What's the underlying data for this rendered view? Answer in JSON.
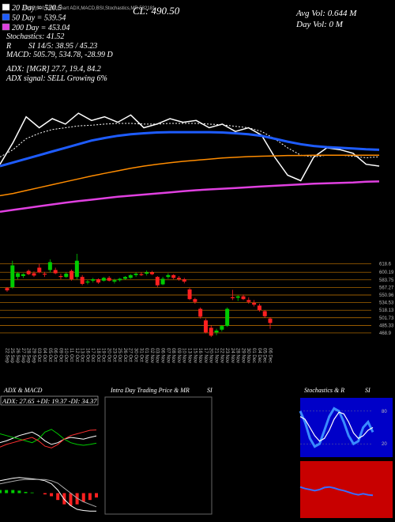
{
  "header": {
    "title": "(NSE)500 EMA Chart ADX,MACD,BSI,Stochastics,MR 532181",
    "close": "CL: 490.50",
    "avg_vol": "Avg Vol: 0.644 M",
    "day_vol": "Day Vol: 0 M",
    "indicators": [
      "Stochastics: 41.52",
      "R",
      "SI 14/5: 38.95 / 45.23",
      "MACD: 505.79, 534.78, -28.99 D",
      "ADX: [MGR] 27.7, 19.4, 84.2",
      "ADX signal: SELL Growing 6%"
    ]
  },
  "chart_data": [
    {
      "type": "line",
      "ylim": [
        300,
        950
      ],
      "series": [
        {
          "color": "#ffffff",
          "width": 1.5,
          "values": [
            500,
            560,
            630,
            600,
            625,
            610,
            640,
            620,
            630,
            615,
            635,
            600,
            610,
            625,
            615,
            620,
            600,
            610,
            590,
            600,
            580,
            520,
            470,
            455,
            520,
            545,
            540,
            530,
            500,
            495
          ]
        },
        {
          "name": "20 Day = 520.5",
          "color": "#ffffff",
          "width": 1,
          "dash": true,
          "values": [
            520,
            540,
            570,
            585,
            595,
            600,
            605,
            607,
            610,
            612,
            612,
            610,
            610,
            612,
            612,
            612,
            610,
            608,
            604,
            600,
            590,
            570,
            545,
            525,
            520,
            525,
            525,
            522,
            518,
            520.5
          ]
        },
        {
          "name": "50 Day = 539.54",
          "color": "#1e5cff",
          "width": 3,
          "values": [
            495,
            505,
            515,
            525,
            535,
            545,
            555,
            565,
            572,
            578,
            582,
            585,
            587,
            588,
            588,
            588,
            588,
            587,
            585,
            582,
            578,
            570,
            562,
            555,
            550,
            547,
            545,
            543,
            541,
            539.54
          ]
        },
        {
          "color": "#ff8c00",
          "width": 1.5,
          "values": [
            414,
            420,
            428,
            436,
            444,
            452,
            460,
            468,
            475,
            482,
            489,
            495,
            500,
            504,
            508,
            511,
            514,
            517,
            519,
            521,
            522,
            523,
            524,
            524,
            525,
            525,
            525,
            525,
            525,
            525
          ]
        },
        {
          "name": "200 Day = 453.04",
          "color": "#e040e0",
          "width": 2.5,
          "values": [
            370,
            375,
            380,
            385,
            390,
            395,
            399,
            403,
            407,
            411,
            414,
            417,
            420,
            423,
            426,
            429,
            431,
            433,
            435,
            437,
            439,
            441,
            443,
            445,
            447,
            448,
            449,
            450,
            452,
            453.04
          ]
        }
      ]
    },
    {
      "type": "candlestick",
      "ylim": [
        450,
        645
      ],
      "level_color": "#c87800",
      "up_color": "#00cc00",
      "down_color": "#ff2020",
      "yticks": [
        618.6,
        600.19,
        583.75,
        567.27,
        550.96,
        534.53,
        518.13,
        501.73,
        485.33,
        468.9
      ],
      "categories": [
        "22 Sep",
        "25 Sep",
        "26 Sep",
        "27 Sep",
        "28 Sep",
        "29 Sep",
        "03 Oct",
        "04 Oct",
        "05 Oct",
        "06 Oct",
        "09 Oct",
        "10 Oct",
        "11 Oct",
        "12 Oct",
        "13 Oct",
        "16 Oct",
        "17 Oct",
        "18 Oct",
        "19 Oct",
        "20 Oct",
        "23 Oct",
        "25 Oct",
        "26 Oct",
        "27 Oct",
        "30 Oct",
        "31 Oct",
        "01 Nov",
        "02 Nov",
        "03 Nov",
        "06 Nov",
        "07 Nov",
        "08 Nov",
        "09 Nov",
        "10 Nov",
        "13 Nov",
        "15 Nov",
        "16 Nov",
        "17 Nov",
        "20 Nov",
        "21 Nov",
        "22 Nov",
        "23 Nov",
        "24 Nov",
        "28 Nov",
        "29 Nov",
        "30 Nov",
        "01 Dec",
        "04 Dec",
        "05 Dec",
        "06 Dec"
      ],
      "open": [
        566,
        568,
        590,
        592,
        603,
        598,
        610,
        597,
        605,
        605,
        592,
        590,
        603,
        590,
        590,
        578,
        582,
        585,
        582,
        588,
        580,
        583,
        586,
        588,
        594,
        596,
        597,
        600,
        590,
        574,
        590,
        594,
        588,
        585,
        563,
        542,
        521,
        496,
        480,
        470,
        476,
        484,
        546,
        545,
        548,
        540,
        534,
        528,
        516,
        500
      ],
      "high": [
        568,
        625,
        600,
        598,
        606,
        602,
        618,
        601,
        628,
        610,
        597,
        600,
        606,
        640,
        594,
        584,
        588,
        587,
        590,
        592,
        586,
        588,
        592,
        596,
        600,
        600,
        604,
        603,
        592,
        590,
        598,
        596,
        592,
        588,
        566,
        545,
        524,
        500,
        485,
        478,
        486,
        524,
        562,
        550,
        552,
        546,
        540,
        532,
        518,
        503
      ],
      "low": [
        558,
        565,
        585,
        588,
        594,
        590,
        598,
        590,
        600,
        596,
        585,
        588,
        582,
        585,
        572,
        574,
        578,
        575,
        580,
        580,
        576,
        580,
        584,
        586,
        590,
        592,
        593,
        594,
        568,
        572,
        586,
        585,
        582,
        576,
        540,
        532,
        500,
        468,
        460,
        464,
        472,
        482,
        540,
        538,
        540,
        532,
        526,
        515,
        502,
        478
      ],
      "close": [
        561,
        615,
        598,
        596,
        596,
        593,
        600,
        595,
        622,
        598,
        590,
        597,
        585,
        625,
        575,
        580,
        585,
        578,
        588,
        582,
        583,
        586,
        590,
        594,
        597,
        594,
        600,
        596,
        572,
        586,
        594,
        588,
        585,
        580,
        542,
        536,
        504,
        470,
        463,
        474,
        484,
        521,
        544,
        548,
        542,
        536,
        530,
        518,
        505,
        490.5
      ]
    },
    {
      "type": "adx",
      "title": "ADX & MACD",
      "annotation": "ADX: 27.65 +DI: 19.37 -DI: 34.37",
      "ylim": [
        0,
        60
      ],
      "series": [
        {
          "color": "#ffffff",
          "values": [
            20,
            22,
            25,
            28,
            30,
            32,
            28,
            22,
            18,
            20,
            24,
            26,
            25,
            24,
            26,
            27.65
          ]
        },
        {
          "color": "#00cc00",
          "values": [
            30,
            28,
            26,
            24,
            22,
            20,
            24,
            32,
            35,
            30,
            24,
            20,
            18,
            17,
            18,
            19.37
          ]
        },
        {
          "color": "#ff3030",
          "values": [
            15,
            18,
            20,
            22,
            24,
            26,
            22,
            16,
            14,
            18,
            24,
            28,
            30,
            32,
            34,
            34.37
          ]
        }
      ]
    },
    {
      "type": "macd",
      "ylim": [
        -40,
        40
      ],
      "up_color": "#00cc00",
      "down_color": "#ff2020",
      "series": [
        {
          "color": "#ffffff",
          "values": [
            20,
            22,
            24,
            25,
            24,
            23,
            22,
            20,
            15,
            5,
            -10,
            -20,
            -26,
            -28,
            -29,
            -28.99
          ]
        },
        {
          "color": "#aaaaaa",
          "values": [
            15,
            17,
            19,
            21,
            22,
            22,
            22,
            22,
            20,
            16,
            8,
            0,
            -8,
            -14,
            -18,
            -22
          ]
        }
      ],
      "values": [
        5,
        5,
        5,
        4,
        2,
        1,
        0,
        -2,
        -5,
        -11,
        -18,
        -20,
        -18,
        -14,
        -11,
        -7
      ]
    },
    {
      "type": "empty",
      "title": "Intra Day Trading Price & MR",
      "title_suffix": "SI"
    },
    {
      "type": "stochastic",
      "title": "Stochastics & R",
      "title_suffix": "SI",
      "background": "#0000c8",
      "ylim": [
        0,
        100
      ],
      "yticks": [
        80,
        20
      ],
      "series": [
        {
          "color": "#3a8cff",
          "width": 3,
          "values": [
            80,
            60,
            30,
            15,
            20,
            45,
            70,
            85,
            80,
            60,
            35,
            20,
            25,
            50,
            60,
            41.52
          ]
        },
        {
          "color": "#ffffff",
          "width": 1.2,
          "values": [
            70,
            65,
            50,
            35,
            25,
            30,
            45,
            65,
            78,
            75,
            60,
            40,
            30,
            35,
            45,
            50
          ]
        }
      ]
    },
    {
      "type": "rsi",
      "background": "#c80000",
      "ylim": [
        0,
        100
      ],
      "series": [
        {
          "color": "#3a6cff",
          "width": 2,
          "values": [
            55,
            52,
            50,
            48,
            50,
            54,
            55,
            53,
            50,
            48,
            45,
            42,
            40,
            42,
            40,
            38.95
          ]
        }
      ]
    }
  ]
}
